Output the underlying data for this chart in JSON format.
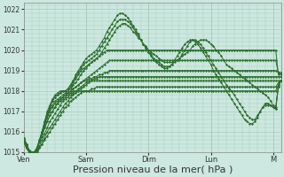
{
  "bg_color": "#cce8e0",
  "grid_color": "#aaccbb",
  "line_color": "#2d6e2d",
  "marker_color": "#2d6e2d",
  "ylim": [
    1015.0,
    1022.3
  ],
  "yticks": [
    1015,
    1016,
    1017,
    1018,
    1019,
    1020,
    1021,
    1022
  ],
  "xlabel": "Pression niveau de la mer( hPa )",
  "xlabel_fontsize": 8,
  "xtick_labels": [
    "Ven",
    "Sam",
    "Dim",
    "Lun",
    "M"
  ],
  "xtick_positions": [
    0,
    24,
    48,
    72,
    96
  ],
  "num_hours": 100,
  "series": [
    [
      1015.5,
      1015.3,
      1015.1,
      1015.0,
      1015.0,
      1015.1,
      1015.2,
      1015.4,
      1015.6,
      1015.8,
      1016.0,
      1016.2,
      1016.4,
      1016.6,
      1016.8,
      1017.0,
      1017.2,
      1017.3,
      1017.5,
      1017.6,
      1017.7,
      1017.8,
      1017.9,
      1018.0,
      1018.0,
      1018.0,
      1018.0,
      1018.0,
      1018.0,
      1018.0,
      1018.0,
      1018.0,
      1018.0,
      1018.0,
      1018.0,
      1018.0,
      1018.0,
      1018.0,
      1018.0,
      1018.0,
      1018.0,
      1018.0,
      1018.0,
      1018.0,
      1018.0,
      1018.0,
      1018.0,
      1018.0,
      1018.0,
      1018.0,
      1018.0,
      1018.0,
      1018.0,
      1018.0,
      1018.0,
      1018.0,
      1018.0,
      1018.0,
      1018.0,
      1018.0,
      1018.0,
      1018.0,
      1018.0,
      1018.0,
      1018.0,
      1018.0,
      1018.0,
      1018.0,
      1018.0,
      1018.0,
      1018.0,
      1018.0,
      1018.0,
      1018.0,
      1018.0,
      1018.0,
      1018.0,
      1018.0,
      1018.0,
      1018.0,
      1018.0,
      1018.0,
      1018.0,
      1018.0,
      1018.0,
      1018.0,
      1018.0,
      1018.0,
      1018.0,
      1018.0,
      1018.0,
      1018.0,
      1018.0,
      1018.0,
      1018.0,
      1018.0,
      1018.0,
      1018.0,
      1018.3,
      1018.5
    ],
    [
      1015.5,
      1015.2,
      1015.0,
      1014.9,
      1014.9,
      1015.0,
      1015.2,
      1015.4,
      1015.7,
      1016.0,
      1016.2,
      1016.4,
      1016.6,
      1016.8,
      1017.0,
      1017.2,
      1017.4,
      1017.5,
      1017.7,
      1017.8,
      1017.9,
      1018.0,
      1018.0,
      1018.0,
      1018.0,
      1018.0,
      1018.1,
      1018.1,
      1018.2,
      1018.2,
      1018.2,
      1018.2,
      1018.2,
      1018.2,
      1018.2,
      1018.2,
      1018.2,
      1018.2,
      1018.2,
      1018.2,
      1018.2,
      1018.2,
      1018.2,
      1018.2,
      1018.2,
      1018.2,
      1018.2,
      1018.2,
      1018.2,
      1018.2,
      1018.2,
      1018.2,
      1018.2,
      1018.2,
      1018.2,
      1018.2,
      1018.2,
      1018.2,
      1018.2,
      1018.2,
      1018.2,
      1018.2,
      1018.2,
      1018.2,
      1018.2,
      1018.2,
      1018.2,
      1018.2,
      1018.2,
      1018.2,
      1018.2,
      1018.2,
      1018.2,
      1018.2,
      1018.2,
      1018.2,
      1018.2,
      1018.2,
      1018.2,
      1018.2,
      1018.2,
      1018.2,
      1018.2,
      1018.2,
      1018.2,
      1018.2,
      1018.2,
      1018.2,
      1018.2,
      1018.2,
      1018.2,
      1018.2,
      1018.2,
      1018.2,
      1018.2,
      1018.2,
      1018.2,
      1018.2,
      1018.4,
      1018.5
    ],
    [
      1015.5,
      1015.3,
      1015.1,
      1015.0,
      1015.0,
      1015.1,
      1015.3,
      1015.6,
      1015.9,
      1016.2,
      1016.5,
      1016.7,
      1016.9,
      1017.1,
      1017.3,
      1017.5,
      1017.6,
      1017.7,
      1017.8,
      1017.9,
      1018.0,
      1018.0,
      1018.1,
      1018.2,
      1018.3,
      1018.4,
      1018.5,
      1018.5,
      1018.5,
      1018.5,
      1018.5,
      1018.5,
      1018.5,
      1018.5,
      1018.5,
      1018.5,
      1018.5,
      1018.5,
      1018.5,
      1018.5,
      1018.5,
      1018.5,
      1018.5,
      1018.5,
      1018.5,
      1018.5,
      1018.5,
      1018.5,
      1018.5,
      1018.5,
      1018.5,
      1018.5,
      1018.5,
      1018.5,
      1018.5,
      1018.5,
      1018.5,
      1018.5,
      1018.5,
      1018.5,
      1018.5,
      1018.5,
      1018.5,
      1018.5,
      1018.5,
      1018.5,
      1018.5,
      1018.5,
      1018.5,
      1018.5,
      1018.5,
      1018.5,
      1018.5,
      1018.5,
      1018.5,
      1018.5,
      1018.5,
      1018.5,
      1018.5,
      1018.5,
      1018.5,
      1018.5,
      1018.5,
      1018.5,
      1018.5,
      1018.5,
      1018.5,
      1018.5,
      1018.5,
      1018.5,
      1018.5,
      1018.5,
      1018.5,
      1018.5,
      1018.5,
      1018.5,
      1018.5,
      1018.5,
      1018.5,
      1018.5
    ],
    [
      1015.5,
      1015.2,
      1015.0,
      1014.9,
      1015.0,
      1015.2,
      1015.5,
      1015.8,
      1016.2,
      1016.5,
      1016.8,
      1017.0,
      1017.2,
      1017.4,
      1017.5,
      1017.6,
      1017.7,
      1017.8,
      1017.9,
      1018.0,
      1018.0,
      1018.1,
      1018.2,
      1018.3,
      1018.4,
      1018.5,
      1018.5,
      1018.6,
      1018.6,
      1018.7,
      1018.7,
      1018.7,
      1018.7,
      1018.7,
      1018.7,
      1018.7,
      1018.7,
      1018.7,
      1018.7,
      1018.7,
      1018.7,
      1018.7,
      1018.7,
      1018.7,
      1018.7,
      1018.7,
      1018.7,
      1018.7,
      1018.7,
      1018.7,
      1018.7,
      1018.7,
      1018.7,
      1018.7,
      1018.7,
      1018.7,
      1018.7,
      1018.7,
      1018.7,
      1018.7,
      1018.7,
      1018.7,
      1018.7,
      1018.7,
      1018.7,
      1018.7,
      1018.7,
      1018.7,
      1018.7,
      1018.7,
      1018.7,
      1018.7,
      1018.7,
      1018.7,
      1018.7,
      1018.7,
      1018.7,
      1018.7,
      1018.7,
      1018.7,
      1018.7,
      1018.7,
      1018.7,
      1018.7,
      1018.7,
      1018.7,
      1018.7,
      1018.7,
      1018.7,
      1018.7,
      1018.7,
      1018.7,
      1018.7,
      1018.7,
      1018.7,
      1018.7,
      1018.7,
      1018.7,
      1018.7,
      1018.7
    ],
    [
      1015.6,
      1015.3,
      1015.1,
      1015.0,
      1015.0,
      1015.2,
      1015.5,
      1015.8,
      1016.2,
      1016.5,
      1016.8,
      1017.0,
      1017.2,
      1017.4,
      1017.6,
      1017.7,
      1017.8,
      1017.9,
      1018.0,
      1018.1,
      1018.2,
      1018.3,
      1018.4,
      1018.5,
      1018.5,
      1018.6,
      1018.6,
      1018.7,
      1018.7,
      1018.8,
      1018.8,
      1018.9,
      1018.9,
      1019.0,
      1019.0,
      1019.0,
      1019.0,
      1019.0,
      1019.0,
      1019.0,
      1019.0,
      1019.0,
      1019.0,
      1019.0,
      1019.0,
      1019.0,
      1019.0,
      1019.0,
      1019.0,
      1019.0,
      1019.0,
      1019.0,
      1019.0,
      1019.0,
      1019.0,
      1019.0,
      1019.0,
      1019.0,
      1019.0,
      1019.0,
      1019.0,
      1019.0,
      1019.0,
      1019.0,
      1019.0,
      1019.0,
      1019.0,
      1019.0,
      1019.0,
      1019.0,
      1019.0,
      1019.0,
      1019.0,
      1019.0,
      1019.0,
      1019.0,
      1019.0,
      1019.0,
      1019.0,
      1019.0,
      1019.0,
      1019.0,
      1019.0,
      1019.0,
      1019.0,
      1019.0,
      1019.0,
      1019.0,
      1019.0,
      1019.0,
      1019.0,
      1019.0,
      1019.0,
      1019.0,
      1019.0,
      1019.0,
      1019.0,
      1019.0,
      1018.9,
      1018.9
    ],
    [
      1015.6,
      1015.3,
      1015.1,
      1015.0,
      1015.0,
      1015.2,
      1015.5,
      1015.9,
      1016.3,
      1016.7,
      1017.0,
      1017.2,
      1017.4,
      1017.5,
      1017.6,
      1017.7,
      1017.8,
      1017.9,
      1018.0,
      1018.1,
      1018.2,
      1018.3,
      1018.4,
      1018.5,
      1018.6,
      1018.7,
      1018.8,
      1018.9,
      1019.0,
      1019.1,
      1019.2,
      1019.3,
      1019.4,
      1019.5,
      1019.5,
      1019.5,
      1019.5,
      1019.5,
      1019.5,
      1019.5,
      1019.5,
      1019.5,
      1019.5,
      1019.5,
      1019.5,
      1019.5,
      1019.5,
      1019.5,
      1019.5,
      1019.5,
      1019.5,
      1019.5,
      1019.5,
      1019.5,
      1019.5,
      1019.5,
      1019.5,
      1019.5,
      1019.5,
      1019.5,
      1019.5,
      1019.5,
      1019.5,
      1019.5,
      1019.5,
      1019.5,
      1019.5,
      1019.5,
      1019.5,
      1019.5,
      1019.5,
      1019.5,
      1019.5,
      1019.5,
      1019.5,
      1019.5,
      1019.5,
      1019.5,
      1019.5,
      1019.5,
      1019.5,
      1019.5,
      1019.5,
      1019.5,
      1019.5,
      1019.5,
      1019.5,
      1019.5,
      1019.5,
      1019.5,
      1019.5,
      1019.5,
      1019.5,
      1019.5,
      1019.5,
      1019.5,
      1019.5,
      1019.5,
      1018.9,
      1018.8
    ],
    [
      1015.6,
      1015.3,
      1015.0,
      1014.9,
      1015.0,
      1015.2,
      1015.6,
      1016.0,
      1016.4,
      1016.8,
      1017.1,
      1017.3,
      1017.5,
      1017.6,
      1017.7,
      1017.8,
      1017.9,
      1018.0,
      1018.1,
      1018.3,
      1018.4,
      1018.6,
      1018.8,
      1019.0,
      1019.1,
      1019.3,
      1019.4,
      1019.5,
      1019.6,
      1019.7,
      1019.8,
      1019.9,
      1020.0,
      1020.0,
      1020.0,
      1020.0,
      1020.0,
      1020.0,
      1020.0,
      1020.0,
      1020.0,
      1020.0,
      1020.0,
      1020.0,
      1020.0,
      1020.0,
      1020.0,
      1020.0,
      1020.0,
      1020.0,
      1020.0,
      1020.0,
      1020.0,
      1020.0,
      1020.0,
      1020.0,
      1020.0,
      1020.0,
      1020.0,
      1020.0,
      1020.0,
      1020.0,
      1020.0,
      1020.0,
      1020.0,
      1020.0,
      1020.0,
      1020.0,
      1020.0,
      1020.0,
      1020.0,
      1020.0,
      1020.0,
      1020.0,
      1020.0,
      1020.0,
      1020.0,
      1020.0,
      1020.0,
      1020.0,
      1020.0,
      1020.0,
      1020.0,
      1020.0,
      1020.0,
      1020.0,
      1020.0,
      1020.0,
      1020.0,
      1020.0,
      1020.0,
      1020.0,
      1020.0,
      1020.0,
      1020.0,
      1020.0,
      1020.0,
      1020.0,
      1018.8,
      1018.8
    ],
    [
      1015.7,
      1015.4,
      1015.1,
      1015.0,
      1015.0,
      1015.2,
      1015.6,
      1016.0,
      1016.5,
      1016.9,
      1017.2,
      1017.5,
      1017.7,
      1017.8,
      1017.9,
      1018.0,
      1018.0,
      1018.1,
      1018.2,
      1018.4,
      1018.6,
      1018.8,
      1019.0,
      1019.1,
      1019.2,
      1019.3,
      1019.4,
      1019.5,
      1019.6,
      1019.7,
      1019.9,
      1020.1,
      1020.3,
      1020.5,
      1020.7,
      1020.9,
      1021.1,
      1021.2,
      1021.3,
      1021.3,
      1021.2,
      1021.1,
      1020.9,
      1020.8,
      1020.6,
      1020.5,
      1020.3,
      1020.2,
      1020.0,
      1019.9,
      1019.8,
      1019.7,
      1019.6,
      1019.5,
      1019.4,
      1019.4,
      1019.4,
      1019.4,
      1019.5,
      1019.5,
      1019.6,
      1019.7,
      1019.8,
      1019.9,
      1020.0,
      1020.2,
      1020.3,
      1020.4,
      1020.5,
      1020.5,
      1020.5,
      1020.4,
      1020.3,
      1020.2,
      1020.0,
      1019.9,
      1019.7,
      1019.5,
      1019.3,
      1019.2,
      1019.1,
      1019.0,
      1018.9,
      1018.8,
      1018.7,
      1018.6,
      1018.5,
      1018.4,
      1018.3,
      1018.2,
      1018.1,
      1018.0,
      1017.9,
      1017.8,
      1017.7,
      1017.5,
      1017.3,
      1017.2,
      1018.2,
      1018.5
    ],
    [
      1015.7,
      1015.4,
      1015.1,
      1015.0,
      1014.9,
      1015.1,
      1015.5,
      1015.9,
      1016.4,
      1016.8,
      1017.2,
      1017.5,
      1017.7,
      1017.8,
      1017.9,
      1018.0,
      1018.0,
      1018.1,
      1018.3,
      1018.5,
      1018.7,
      1018.9,
      1019.1,
      1019.3,
      1019.4,
      1019.5,
      1019.6,
      1019.7,
      1019.8,
      1020.0,
      1020.2,
      1020.4,
      1020.6,
      1020.8,
      1021.0,
      1021.2,
      1021.4,
      1021.5,
      1021.5,
      1021.5,
      1021.4,
      1021.3,
      1021.1,
      1020.9,
      1020.7,
      1020.5,
      1020.3,
      1020.1,
      1019.9,
      1019.8,
      1019.6,
      1019.5,
      1019.4,
      1019.3,
      1019.2,
      1019.2,
      1019.2,
      1019.3,
      1019.4,
      1019.5,
      1019.6,
      1019.8,
      1020.0,
      1020.2,
      1020.4,
      1020.5,
      1020.5,
      1020.4,
      1020.3,
      1020.1,
      1019.9,
      1019.7,
      1019.5,
      1019.3,
      1019.1,
      1018.9,
      1018.7,
      1018.5,
      1018.3,
      1018.1,
      1018.0,
      1017.8,
      1017.6,
      1017.4,
      1017.2,
      1017.0,
      1016.8,
      1016.7,
      1016.6,
      1016.6,
      1016.8,
      1017.0,
      1017.2,
      1017.3,
      1017.3,
      1017.3,
      1017.2,
      1017.1,
      1018.2,
      1018.5
    ],
    [
      1015.7,
      1015.4,
      1015.1,
      1015.0,
      1014.9,
      1015.1,
      1015.5,
      1016.0,
      1016.5,
      1017.0,
      1017.3,
      1017.6,
      1017.8,
      1017.9,
      1018.0,
      1018.0,
      1018.0,
      1018.1,
      1018.3,
      1018.5,
      1018.8,
      1019.0,
      1019.2,
      1019.4,
      1019.6,
      1019.7,
      1019.8,
      1019.9,
      1020.0,
      1020.2,
      1020.4,
      1020.6,
      1020.9,
      1021.1,
      1021.3,
      1021.5,
      1021.7,
      1021.8,
      1021.8,
      1021.7,
      1021.6,
      1021.4,
      1021.2,
      1021.0,
      1020.8,
      1020.5,
      1020.3,
      1020.1,
      1019.9,
      1019.7,
      1019.5,
      1019.4,
      1019.3,
      1019.2,
      1019.1,
      1019.1,
      1019.2,
      1019.3,
      1019.5,
      1019.7,
      1019.9,
      1020.1,
      1020.3,
      1020.4,
      1020.5,
      1020.5,
      1020.4,
      1020.3,
      1020.1,
      1019.9,
      1019.7,
      1019.5,
      1019.3,
      1019.0,
      1018.8,
      1018.6,
      1018.4,
      1018.2,
      1018.0,
      1017.8,
      1017.6,
      1017.4,
      1017.2,
      1017.0,
      1016.8,
      1016.6,
      1016.5,
      1016.4,
      1016.4,
      1016.5,
      1016.7,
      1017.0,
      1017.2,
      1017.4,
      1017.4,
      1017.3,
      1017.2,
      1017.1,
      1018.3,
      1018.5
    ]
  ]
}
